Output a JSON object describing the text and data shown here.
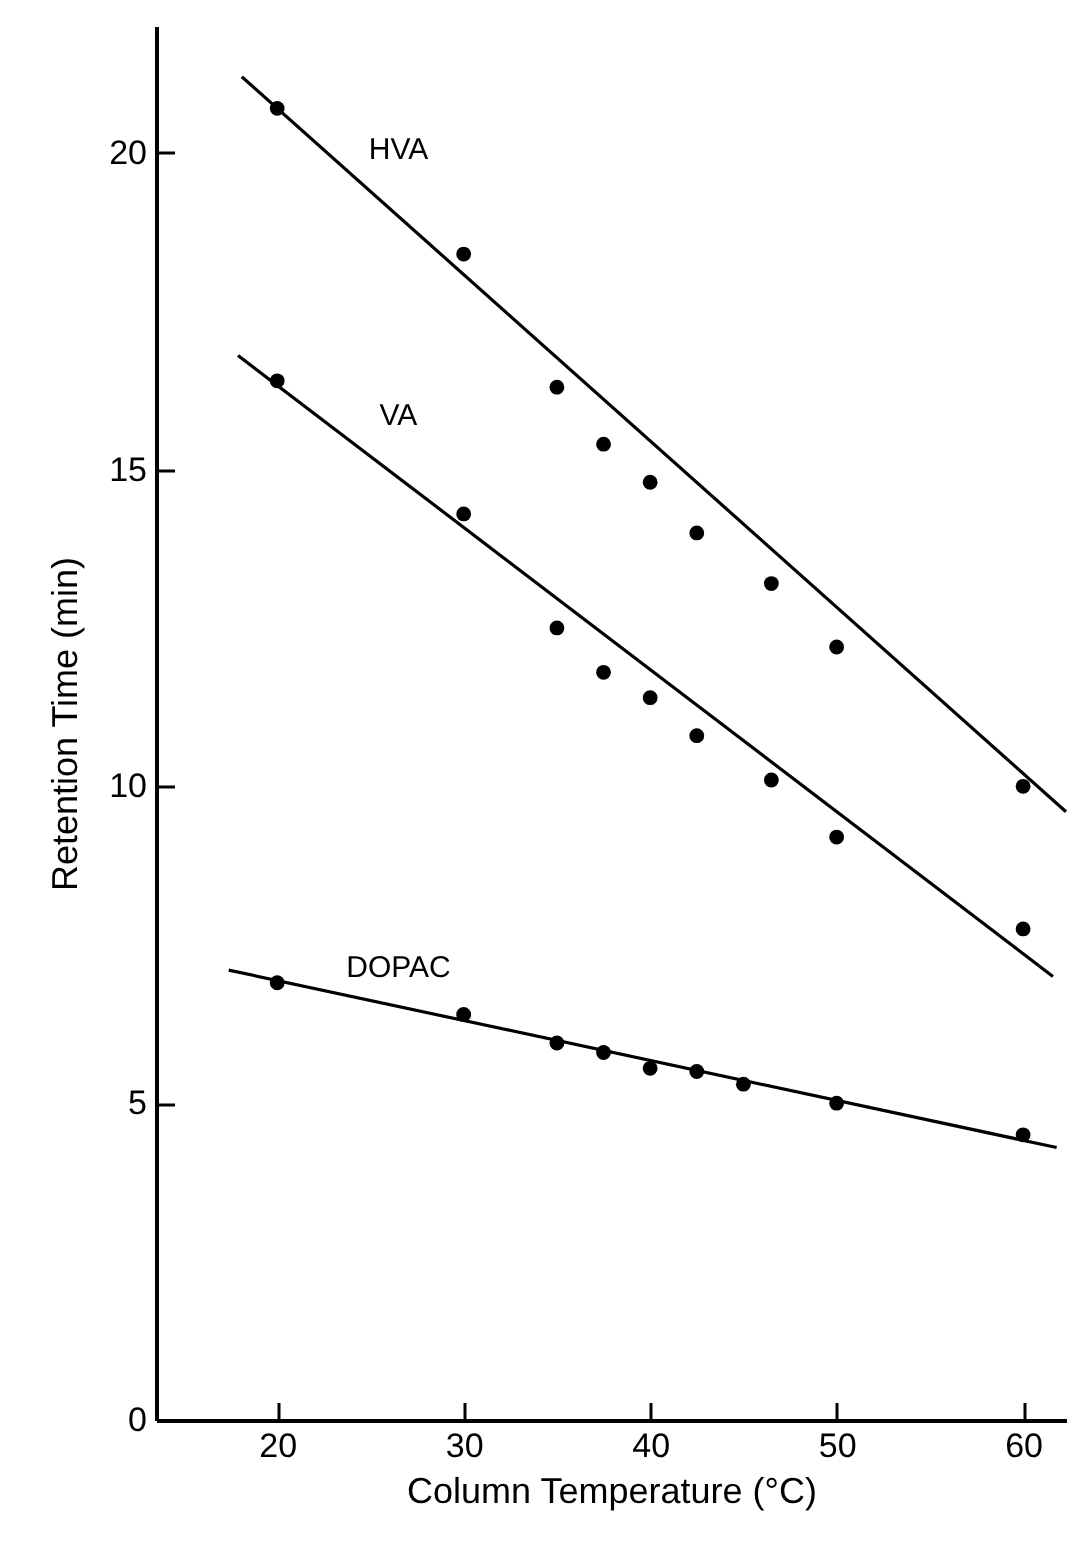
{
  "chart_data": {
    "type": "scatter",
    "xlabel": "Column Temperature (°C)",
    "ylabel": "Retention Time (min)",
    "xlim": [
      13.5,
      62.3
    ],
    "ylim": [
      0,
      22
    ],
    "xticks": [
      20,
      30,
      40,
      50,
      60
    ],
    "yticks": [
      0,
      5,
      10,
      15,
      20
    ],
    "marker": "circle",
    "grid": false,
    "series": [
      {
        "name": "HVA",
        "color": "#000000",
        "x": [
          20,
          30,
          35,
          37.5,
          40,
          42.5,
          46.5,
          50,
          60
        ],
        "values": [
          20.7,
          18.4,
          16.3,
          15.4,
          14.8,
          14.0,
          13.2,
          12.2,
          10.0
        ]
      },
      {
        "name": "VA",
        "color": "#000000",
        "x": [
          20,
          30,
          35,
          37.5,
          40,
          42.5,
          46.5,
          50,
          60
        ],
        "values": [
          16.4,
          14.3,
          12.5,
          11.8,
          11.4,
          10.8,
          10.1,
          9.2,
          7.75
        ]
      },
      {
        "name": "DOPAC",
        "color": "#000000",
        "x": [
          20,
          30,
          35,
          37.5,
          40,
          42.5,
          45,
          50,
          60
        ],
        "values": [
          6.9,
          6.4,
          5.95,
          5.8,
          5.55,
          5.5,
          5.3,
          5.0,
          4.5
        ]
      },
      {
        "type": "line",
        "marker": "none",
        "color": "#000000",
        "line_style": "solid",
        "x": [
          18.1,
          62.3
        ],
        "values": [
          21.2,
          9.6
        ]
      },
      {
        "type": "line",
        "marker": "none",
        "color": "#000000",
        "line_style": "solid",
        "x": [
          17.9,
          61.6
        ],
        "values": [
          16.8,
          7.0
        ]
      },
      {
        "type": "line",
        "marker": "none",
        "color": "#000000",
        "line_style": "solid",
        "x": [
          17.4,
          61.8
        ],
        "values": [
          7.1,
          4.3
        ]
      }
    ]
  }
}
